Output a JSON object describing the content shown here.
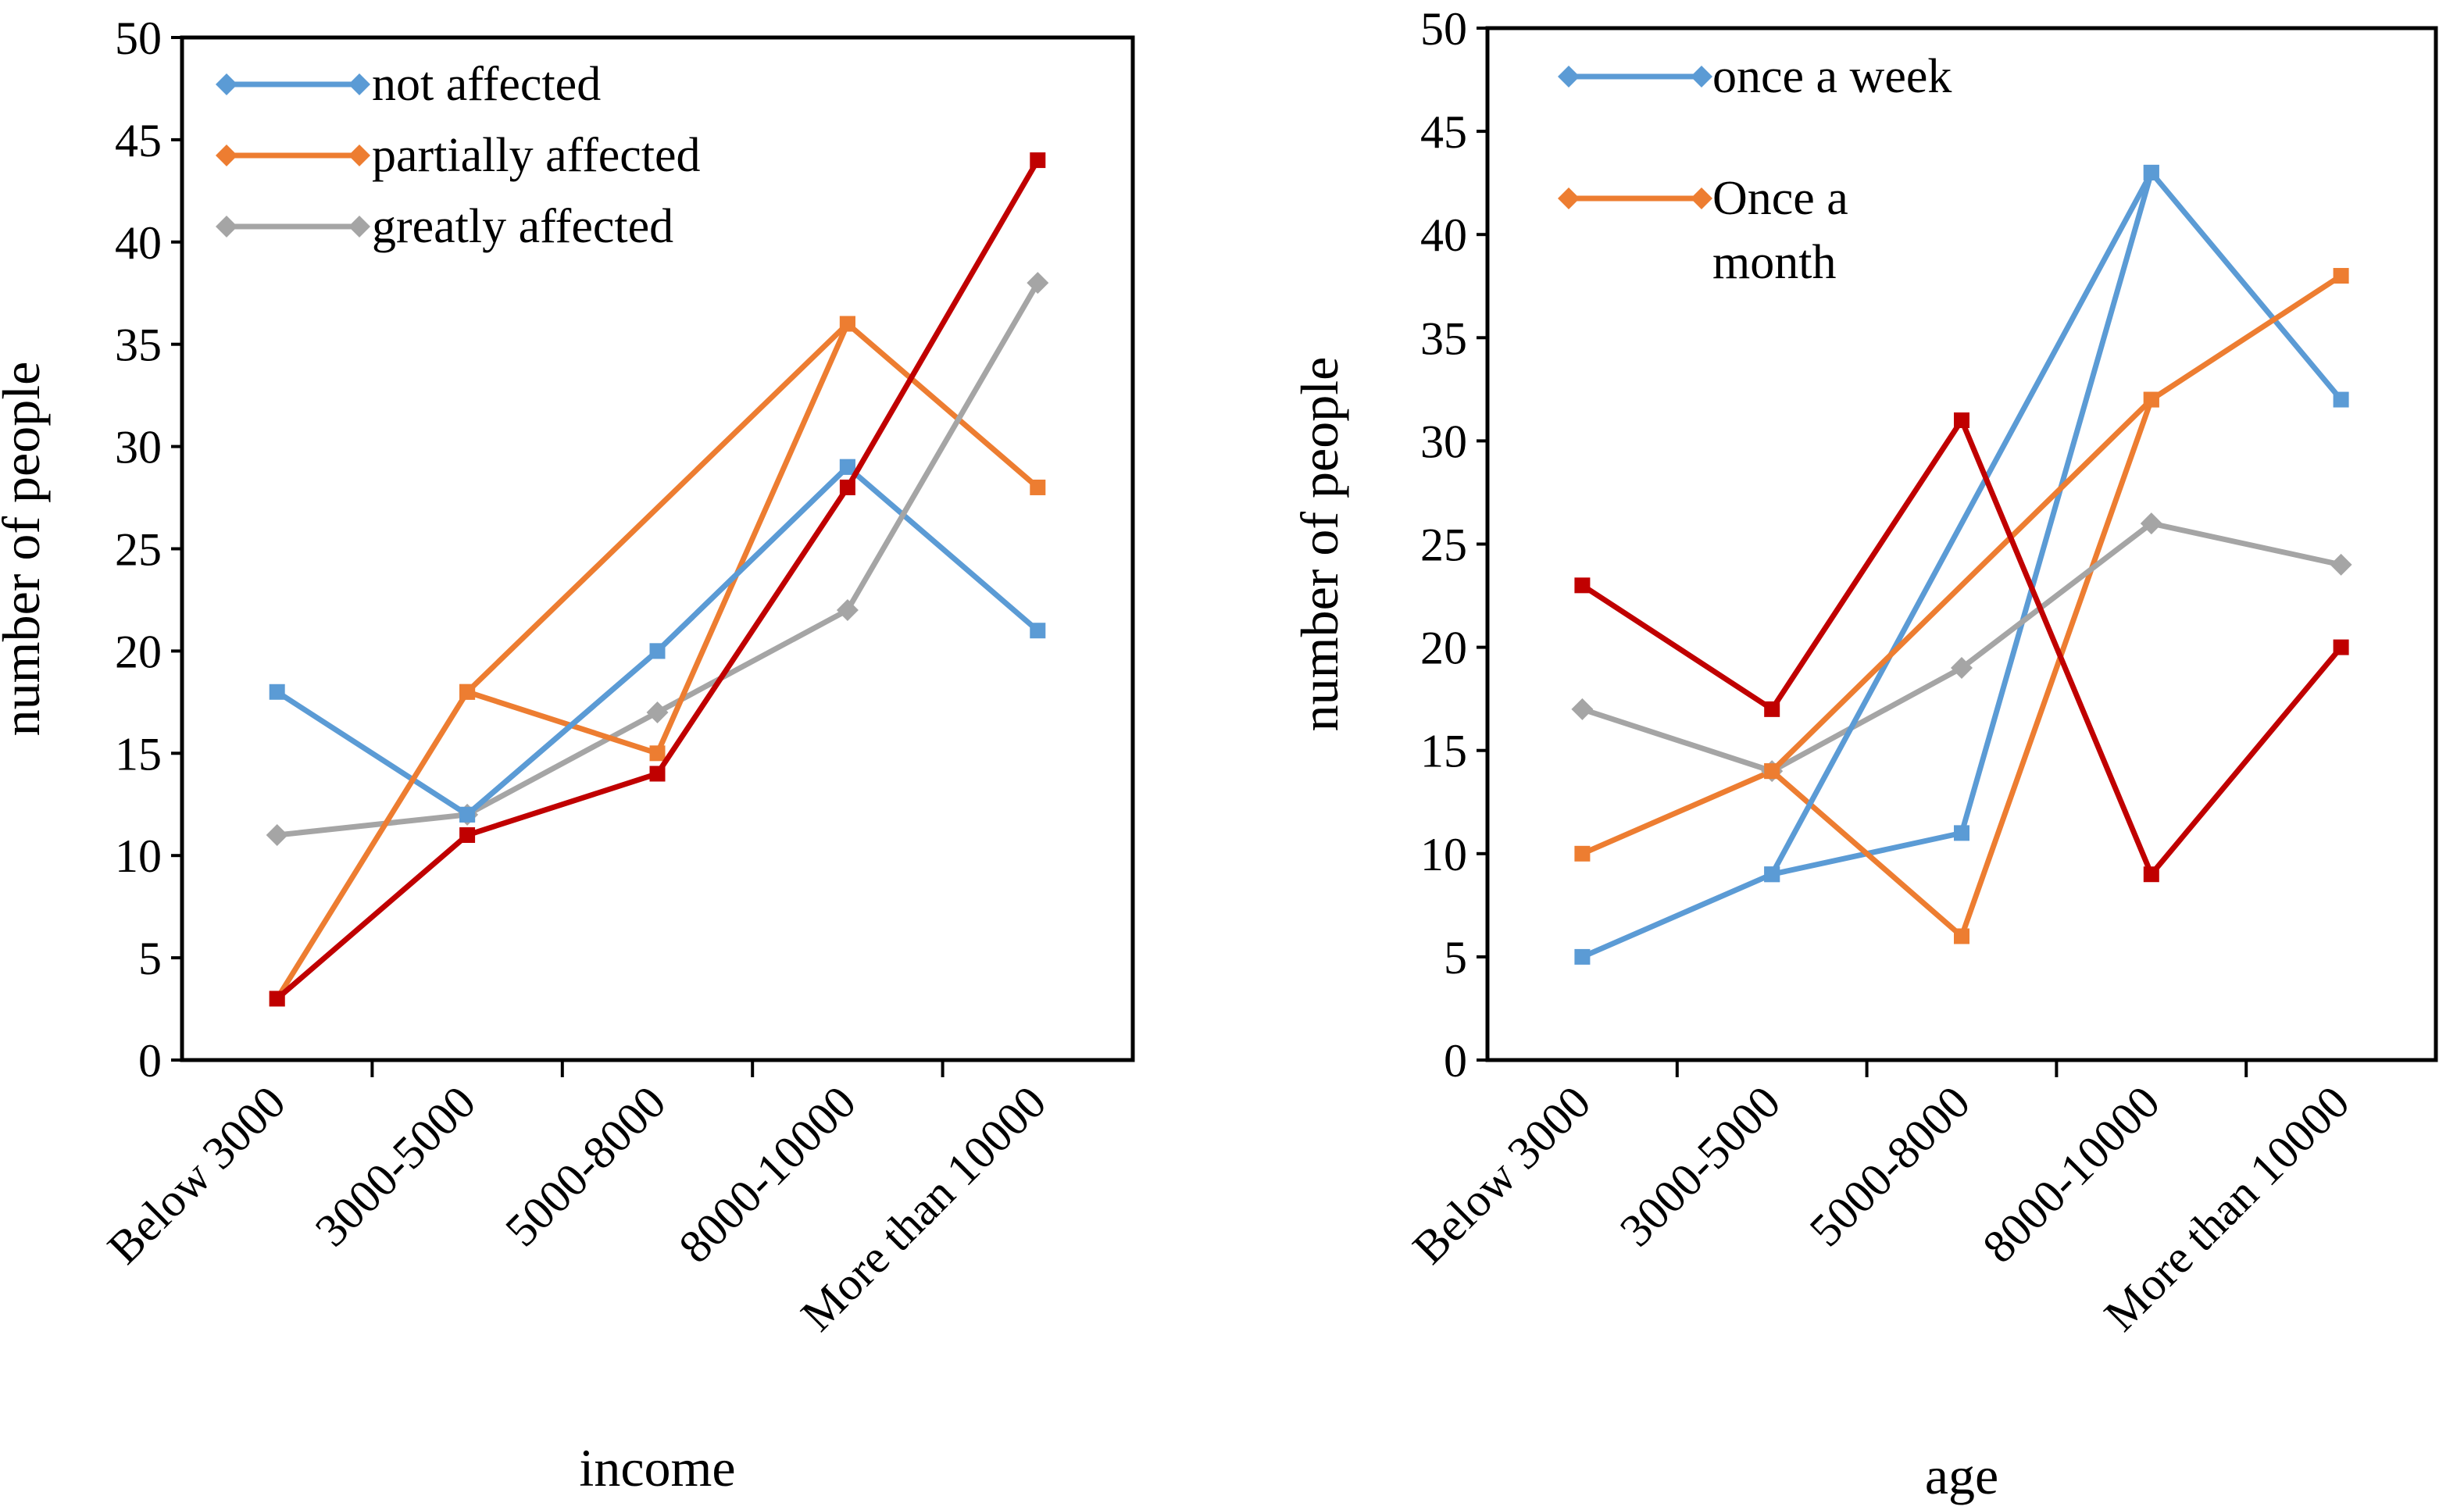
{
  "charts": [
    {
      "type": "line",
      "title": "",
      "xlabel": "income",
      "ylabel": "number of people",
      "categories": [
        "Below 3000",
        "3000-5000",
        "5000-8000",
        "8000-10000",
        "More than 10000"
      ],
      "ylim": [
        0,
        50
      ],
      "yticks": [
        0,
        5,
        10,
        15,
        20,
        25,
        30,
        35,
        40,
        45,
        50
      ],
      "legend": [
        {
          "label": "not affected",
          "color": "#5B9BD5",
          "marker": "diamond"
        },
        {
          "label": "partially affected",
          "color": "#ED7D31",
          "marker": "diamond"
        },
        {
          "label": "greatly affected",
          "color": "#A5A5A5",
          "marker": "diamond"
        }
      ],
      "series": [
        {
          "name": "not affected",
          "color": "#5B9BD5",
          "marker": "square",
          "x": [
            0,
            1,
            2,
            3,
            4
          ],
          "values": [
            18,
            12,
            20,
            29,
            21
          ]
        },
        {
          "name": "partially affected",
          "color": "#ED7D31",
          "marker": "square",
          "x": [
            1,
            3,
            4
          ],
          "values": [
            18,
            36,
            28
          ]
        },
        {
          "name": "greatly affected",
          "color": "#A5A5A5",
          "marker": "diamond",
          "x": [
            0,
            1,
            2,
            3,
            4
          ],
          "values": [
            11,
            12,
            17,
            22,
            38
          ]
        },
        {
          "name": "",
          "color": "#ED7D31",
          "marker": "square",
          "x": [
            0,
            1,
            2,
            3
          ],
          "values": [
            3,
            18,
            15,
            36
          ]
        },
        {
          "name": "",
          "color": "#5B9BD5",
          "marker": "square",
          "x": [
            1,
            2,
            3
          ],
          "values": [
            12,
            20,
            29
          ]
        },
        {
          "name": "",
          "color": "#C00000",
          "marker": "square",
          "x": [
            0,
            1,
            2,
            3,
            4
          ],
          "values": [
            3,
            11,
            14,
            28,
            44
          ]
        }
      ]
    },
    {
      "type": "line",
      "title": "",
      "xlabel": "age",
      "ylabel": "number of people",
      "categories": [
        "Below 3000",
        "3000-5000",
        "5000-8000",
        "8000-10000",
        "More than 10000"
      ],
      "ylim": [
        0,
        50
      ],
      "yticks": [
        0,
        5,
        10,
        15,
        20,
        25,
        30,
        35,
        40,
        45,
        50
      ],
      "legend": [
        {
          "lines": [
            "once a week"
          ],
          "color": "#5B9BD5",
          "marker": "diamond"
        },
        {
          "lines": [
            "Once a",
            "month"
          ],
          "color": "#ED7D31",
          "marker": "diamond"
        }
      ],
      "series": [
        {
          "name": "once a week",
          "color": "#5B9BD5",
          "marker": "square",
          "x": [
            0,
            1,
            2,
            3,
            4
          ],
          "values": [
            5,
            9,
            11,
            43,
            32
          ]
        },
        {
          "name": "Once a month",
          "color": "#ED7D31",
          "marker": "square",
          "x": [
            0,
            1,
            2,
            3,
            4
          ],
          "values": [
            10,
            14,
            6,
            32,
            38
          ]
        },
        {
          "name": "",
          "color": "#A5A5A5",
          "marker": "diamond",
          "x": [
            0,
            1,
            2,
            3,
            4
          ],
          "values": [
            17,
            14,
            19,
            26,
            24
          ]
        },
        {
          "name": "",
          "color": "#5B9BD5",
          "marker": "square",
          "x": [
            1,
            3
          ],
          "values": [
            9,
            43
          ]
        },
        {
          "name": "",
          "color": "#ED7D31",
          "marker": "square",
          "x": [
            1,
            3
          ],
          "values": [
            14,
            32
          ]
        },
        {
          "name": "",
          "color": "#C00000",
          "marker": "square",
          "x": [
            0,
            1,
            2,
            3,
            4
          ],
          "values": [
            23,
            17,
            31,
            9,
            20
          ]
        }
      ]
    }
  ]
}
